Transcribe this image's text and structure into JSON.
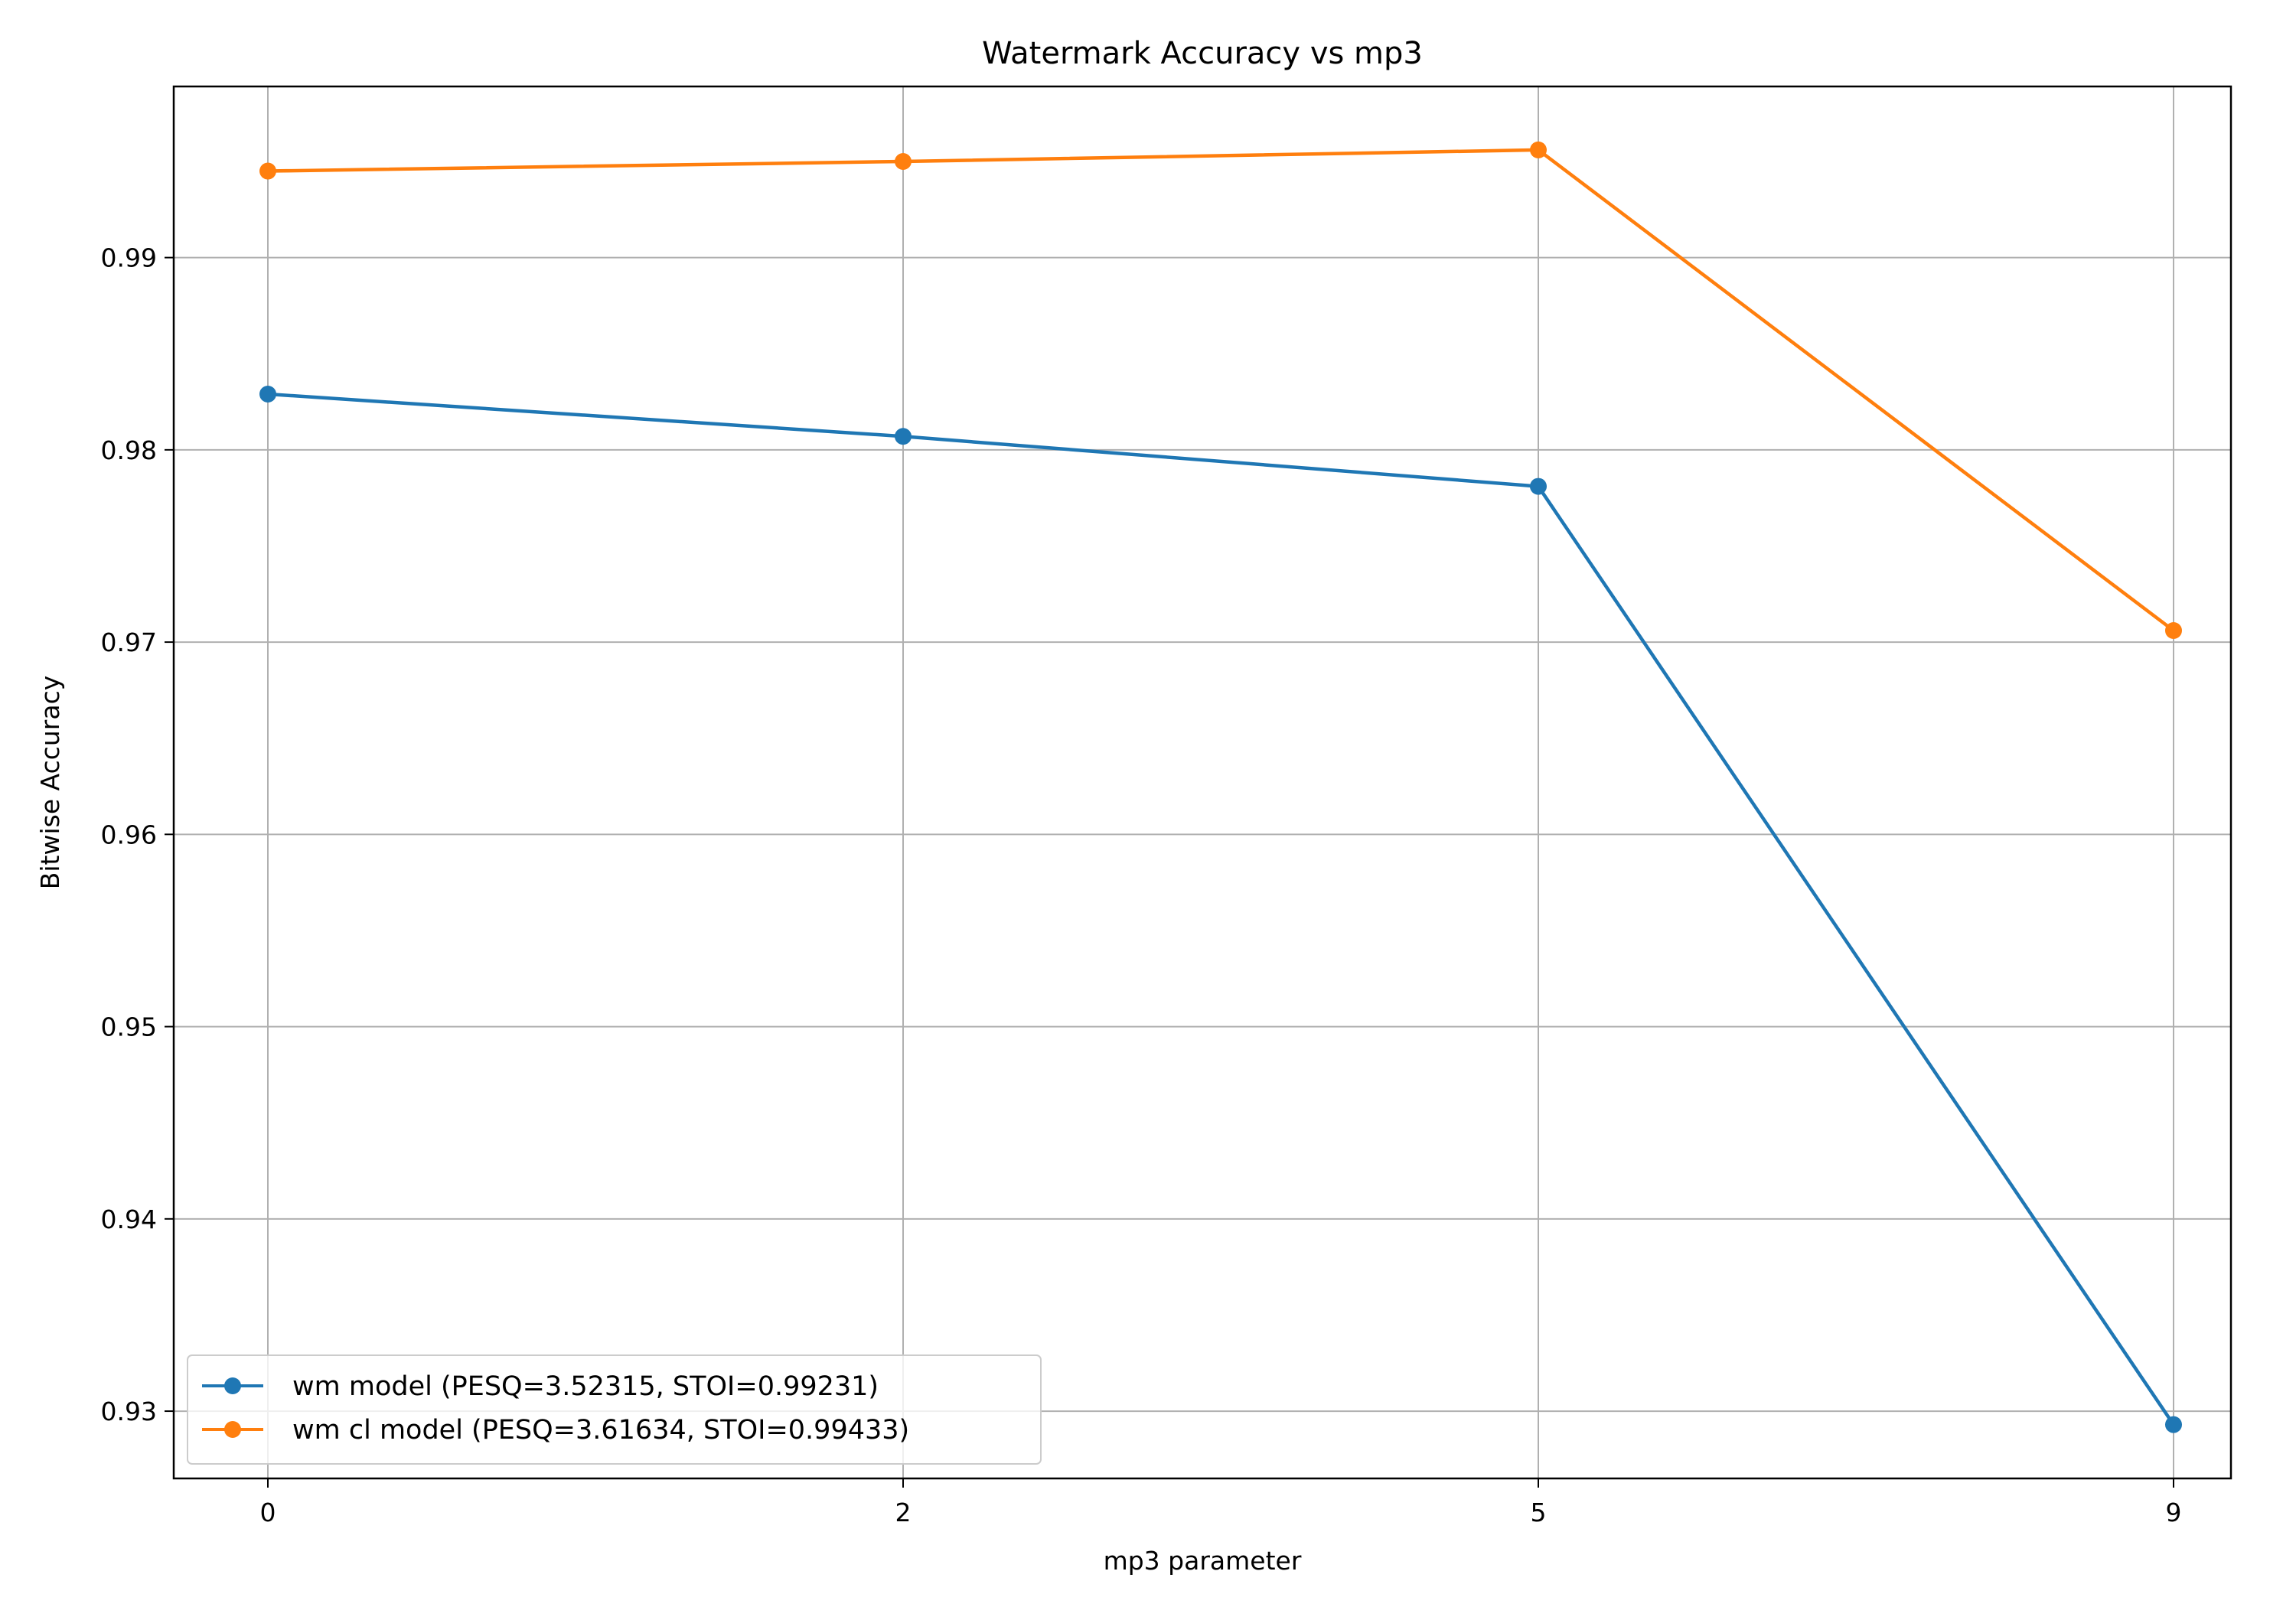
{
  "chart_data": {
    "type": "line",
    "title": "Watermark Accuracy vs mp3",
    "xlabel": "mp3 parameter",
    "ylabel": "Bitwise Accuracy",
    "categories": [
      "0",
      "2",
      "5",
      "9"
    ],
    "ylim": [
      0.9265,
      0.9989
    ],
    "yticks": [
      "0.93",
      "0.94",
      "0.95",
      "0.96",
      "0.97",
      "0.98",
      "0.99"
    ],
    "grid": true,
    "legend_position": "lower-left",
    "series": [
      {
        "name": "wm model (PESQ=3.52315, STOI=0.99231)",
        "color": "#1f77b4",
        "marker": "circle",
        "values": [
          0.9829,
          0.9807,
          0.9781,
          0.9293
        ]
      },
      {
        "name": "wm cl model (PESQ=3.61634, STOI=0.99433)",
        "color": "#ff7f0e",
        "marker": "circle",
        "values": [
          0.9945,
          0.995,
          0.9956,
          0.9706
        ]
      }
    ]
  }
}
